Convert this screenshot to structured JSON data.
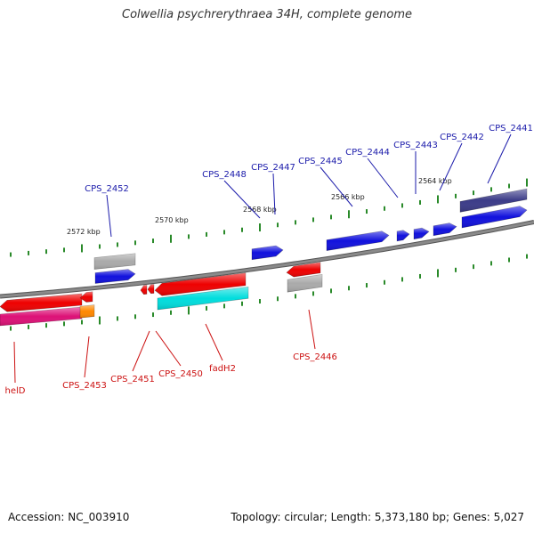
{
  "title": "Colwellia psychrerythraea 34H, complete genome",
  "footer": {
    "accession": "Accession: NC_003910",
    "stats": "Topology: circular; Length: 5,373,180 bp; Genes: 5,027"
  },
  "colors": {
    "backbone": "#8a8a8a",
    "forward_label": "#1a1aaa",
    "reverse_label": "#cc1111",
    "tick": "#2a8a2a",
    "red": "#ee0000",
    "blue": "#1111dd",
    "gray": "#aaaaaa",
    "cyan": "#00dddd",
    "magenta": "#dd1177",
    "navy": "#3b3b88",
    "orange": "#ff8800"
  },
  "kbp_labels": [
    "2572 kbp",
    "2570 kbp",
    "2568 kbp",
    "2566 kbp",
    "2564 kbp"
  ],
  "forward_labels": [
    "CPS_2452",
    "CPS_2448",
    "CPS_2447",
    "CPS_2445",
    "CPS_2444",
    "CPS_2443",
    "CPS_2442",
    "CPS_2441"
  ],
  "reverse_labels": [
    "helD",
    "CPS_2453",
    "CPS_2451",
    "CPS_2450",
    "fadH2",
    "CPS_2446"
  ]
}
